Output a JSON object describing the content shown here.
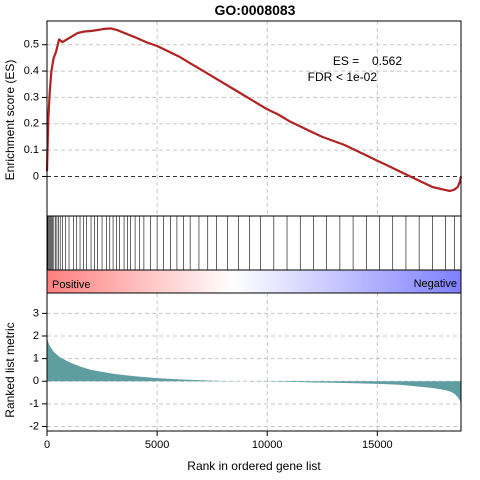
{
  "chart_data": {
    "type": "line",
    "title": "GO:0008083",
    "xlabel": "Rank in ordered gene list",
    "xlim": [
      0,
      18800
    ],
    "x_ticks": [
      0,
      5000,
      10000,
      15000
    ],
    "es_panel": {
      "ylabel": "Enrichment score (ES)",
      "ylim": [
        -0.15,
        0.59
      ],
      "y_ticks": [
        0,
        0.1,
        0.2,
        0.3,
        0.4,
        0.5
      ],
      "y_tick_labels": [
        "0",
        "0.1",
        "0.2",
        "0.3",
        "0.4",
        "0.5"
      ],
      "grid": true,
      "line_color": "#b22222",
      "baseline": 0,
      "annotations": {
        "es_label": "ES =",
        "es_value": "0.562",
        "fdr_label": "FDR",
        "fdr_value": "< 1e-02"
      },
      "series": [
        {
          "x": [
            0,
            60,
            130,
            200,
            300,
            400,
            550,
            700,
            900,
            1100,
            1400,
            1700,
            2000,
            2300,
            2600,
            2900,
            3200,
            3500,
            4000,
            4500,
            5000,
            5500,
            6000,
            6500,
            7000,
            7500,
            8000,
            8500,
            9000,
            9500,
            10000,
            10500,
            11000,
            11500,
            12000,
            12500,
            13000,
            13500,
            14000,
            14500,
            15000,
            15500,
            16000,
            16500,
            17000,
            17500,
            18000,
            18300,
            18500,
            18650,
            18750,
            18800
          ],
          "values": [
            0.02,
            0.22,
            0.33,
            0.4,
            0.45,
            0.47,
            0.52,
            0.51,
            0.52,
            0.53,
            0.545,
            0.55,
            0.552,
            0.556,
            0.56,
            0.562,
            0.555,
            0.545,
            0.528,
            0.51,
            0.495,
            0.475,
            0.455,
            0.43,
            0.405,
            0.38,
            0.355,
            0.33,
            0.305,
            0.28,
            0.255,
            0.235,
            0.21,
            0.19,
            0.17,
            0.15,
            0.135,
            0.12,
            0.1,
            0.08,
            0.06,
            0.04,
            0.02,
            0.0,
            -0.02,
            -0.04,
            -0.05,
            -0.055,
            -0.05,
            -0.04,
            -0.02,
            0.0
          ]
        }
      ]
    },
    "hit_panel": {
      "hits": [
        30,
        70,
        110,
        150,
        200,
        250,
        310,
        380,
        450,
        520,
        600,
        700,
        850,
        1000,
        1200,
        1350,
        1500,
        1650,
        1800,
        2000,
        2150,
        2300,
        2500,
        2700,
        2850,
        3000,
        3150,
        3300,
        3500,
        3650,
        3800,
        4000,
        4200,
        4400,
        4700,
        5000,
        5300,
        5600,
        5900,
        6200,
        6500,
        6900,
        7300,
        7700,
        8200,
        8700,
        9200,
        9700,
        10300,
        10900,
        11500,
        12100,
        12700,
        13300,
        13900,
        14500,
        15100,
        15700,
        16300,
        16900,
        17500,
        18100,
        18500
      ]
    },
    "gradient_bar": {
      "positive_label": "Positive",
      "negative_label": "Negative",
      "positive_color": "#ff7f7f",
      "negative_color": "#7f7fff"
    },
    "metric_panel": {
      "ylabel": "Ranked list metric",
      "ylim": [
        -2.2,
        3.9
      ],
      "y_ticks": [
        -2,
        -1,
        0,
        1,
        2,
        3
      ],
      "y_tick_labels": [
        "-2",
        "-1",
        "0",
        "1",
        "2",
        "3"
      ],
      "grid": true,
      "fill_color": "#5f9ea0",
      "series": [
        {
          "x": [
            0,
            100,
            300,
            600,
            1000,
            1500,
            2000,
            3000,
            4000,
            5000,
            6000,
            7000,
            8000,
            9000,
            10000,
            11000,
            12000,
            13000,
            14000,
            15000,
            16000,
            16500,
            17000,
            17500,
            18000,
            18300,
            18500,
            18650,
            18750,
            18800
          ],
          "values": [
            1.9,
            1.6,
            1.3,
            1.05,
            0.85,
            0.65,
            0.5,
            0.33,
            0.22,
            0.14,
            0.08,
            0.04,
            0.01,
            0.0,
            -0.01,
            -0.03,
            -0.05,
            -0.07,
            -0.09,
            -0.12,
            -0.16,
            -0.2,
            -0.25,
            -0.3,
            -0.38,
            -0.45,
            -0.55,
            -0.7,
            -0.85,
            -1.0
          ]
        }
      ]
    }
  }
}
